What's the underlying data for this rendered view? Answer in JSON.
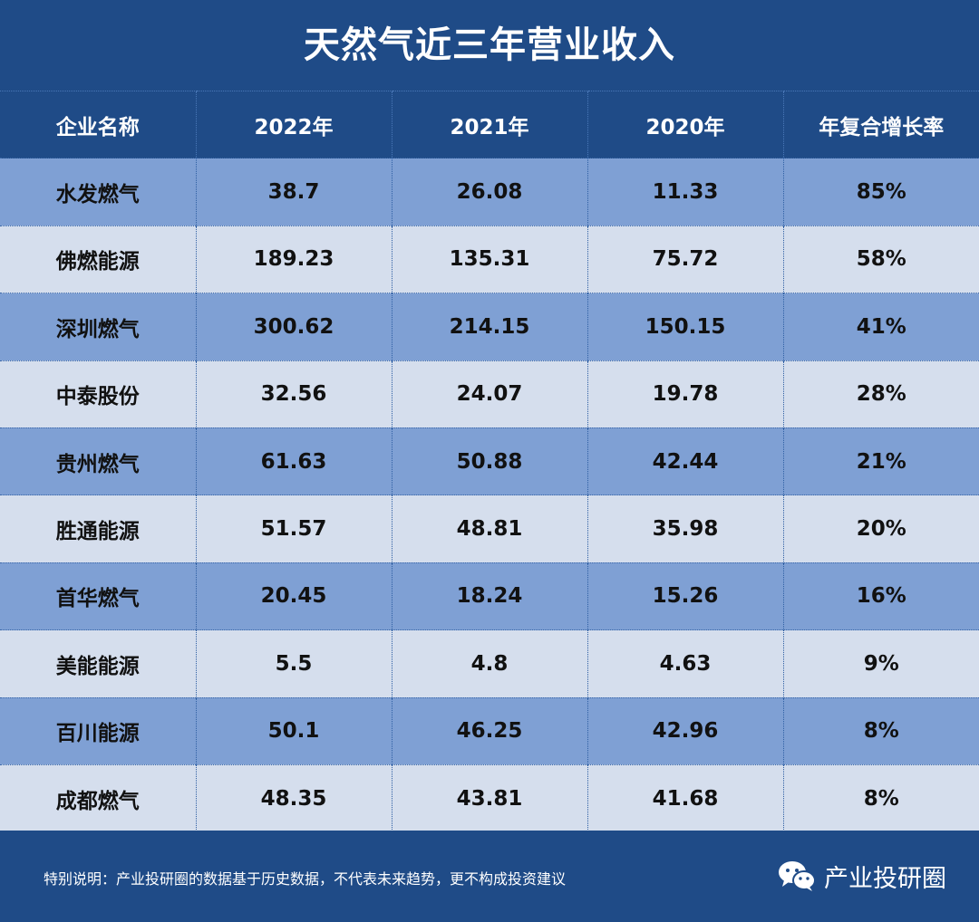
{
  "title": "天然气近三年营业收入",
  "chart_data": {
    "type": "table",
    "title": "天然气近三年营业收入",
    "columns": [
      "企业名称",
      "2022年",
      "2021年",
      "2020年",
      "年复合增长率"
    ],
    "rows": [
      [
        "水发燃气",
        "38.7",
        "26.08",
        "11.33",
        "85%"
      ],
      [
        "佛燃能源",
        "189.23",
        "135.31",
        "75.72",
        "58%"
      ],
      [
        "深圳燃气",
        "300.62",
        "214.15",
        "150.15",
        "41%"
      ],
      [
        "中泰股份",
        "32.56",
        "24.07",
        "19.78",
        "28%"
      ],
      [
        "贵州燃气",
        "61.63",
        "50.88",
        "42.44",
        "21%"
      ],
      [
        "胜通能源",
        "51.57",
        "48.81",
        "35.98",
        "20%"
      ],
      [
        "首华燃气",
        "20.45",
        "18.24",
        "15.26",
        "16%"
      ],
      [
        "美能能源",
        "5.5",
        "4.8",
        "4.63",
        "9%"
      ],
      [
        "百川能源",
        "50.1",
        "46.25",
        "42.96",
        "8%"
      ],
      [
        "成都燃气",
        "48.35",
        "43.81",
        "41.68",
        "8%"
      ]
    ]
  },
  "footer": {
    "note": "特别说明：产业投研圈的数据基于历史数据，不代表未来趋势，更不构成投资建议",
    "brand": "产业投研圈",
    "brand_icon": "wechat-icon"
  },
  "colors": {
    "header_bg": "#1f4b87",
    "row_dark": "#7fa0d4",
    "row_light": "#d5deed"
  }
}
